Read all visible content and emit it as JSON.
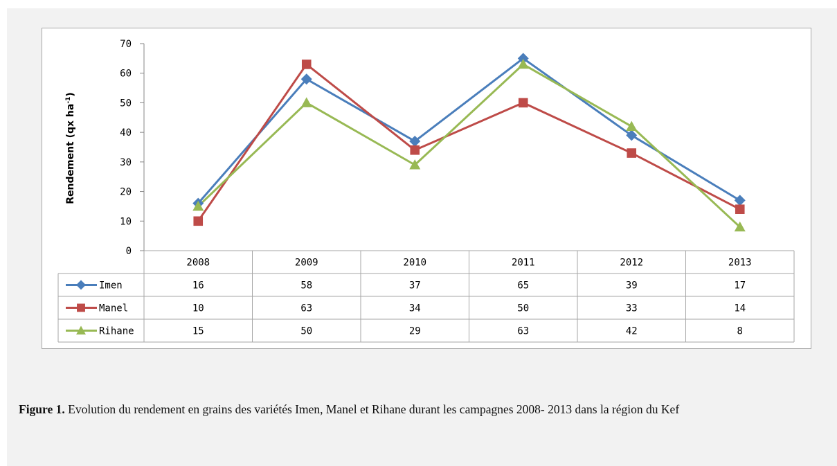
{
  "chart_data": {
    "type": "line",
    "ylabel_main": "Rendement (qx ha",
    "ylabel_sup": "-1",
    "ylabel_close": ")",
    "ylim": [
      0,
      70
    ],
    "yticks": [
      0,
      10,
      20,
      30,
      40,
      50,
      60,
      70
    ],
    "categories": [
      "2008",
      "2009",
      "2010",
      "2011",
      "2012",
      "2013"
    ],
    "grid": false,
    "legend": "data-table",
    "series": [
      {
        "name": "Imen",
        "color": "#4a7ebb",
        "marker": "diamond",
        "values": [
          16,
          58,
          37,
          65,
          39,
          17
        ]
      },
      {
        "name": "Manel",
        "color": "#be4b48",
        "marker": "square",
        "values": [
          10,
          63,
          34,
          50,
          33,
          14
        ]
      },
      {
        "name": "Rihane",
        "color": "#98b954",
        "marker": "triangle",
        "values": [
          15,
          50,
          29,
          63,
          42,
          8
        ]
      }
    ]
  },
  "caption": {
    "label": "Figure 1.",
    "text": " Evolution du rendement en grains des variétés Imen, Manel et Rihane durant les campagnes 2008- 2013 dans la région du Kef"
  }
}
